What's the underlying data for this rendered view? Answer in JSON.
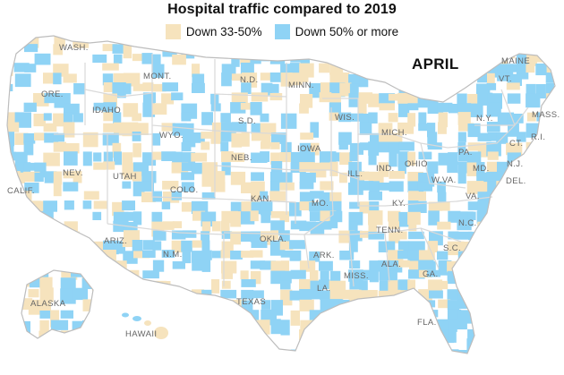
{
  "title": "Hospital traffic compared to 2019",
  "legend": {
    "items": [
      {
        "label": "Down 33-50%",
        "color": "#f6e3bd"
      },
      {
        "label": "Down 50% or more",
        "color": "#8fd3f5"
      }
    ]
  },
  "month_label": "APRIL",
  "colors": {
    "background": "#ffffff",
    "state_border": "#d9d9d9",
    "outline": "#bdbdbd",
    "label_text": "#666666"
  },
  "state_labels": [
    "WASH.",
    "ORE.",
    "IDAHO",
    "MONT.",
    "N.D.",
    "MINN.",
    "S.D.",
    "WYO.",
    "NEB.",
    "IOWA",
    "WIS.",
    "MICH.",
    "NEV.",
    "UTAH",
    "CALIF.",
    "COLO.",
    "KAN.",
    "MO.",
    "ILL.",
    "IND.",
    "OHIO",
    "ARIZ.",
    "N.M.",
    "OKLA.",
    "ARK.",
    "TENN.",
    "KY.",
    "W.VA.",
    "VA.",
    "N.C.",
    "S.C.",
    "GA.",
    "ALA.",
    "MISS.",
    "LA.",
    "TEXAS",
    "FLA.",
    "PA.",
    "N.Y.",
    "VT.",
    "MAINE",
    "MASS.",
    "R.I.",
    "CT.",
    "N.J.",
    "DEL.",
    "MD.",
    "ALASKA",
    "HAWAII"
  ]
}
